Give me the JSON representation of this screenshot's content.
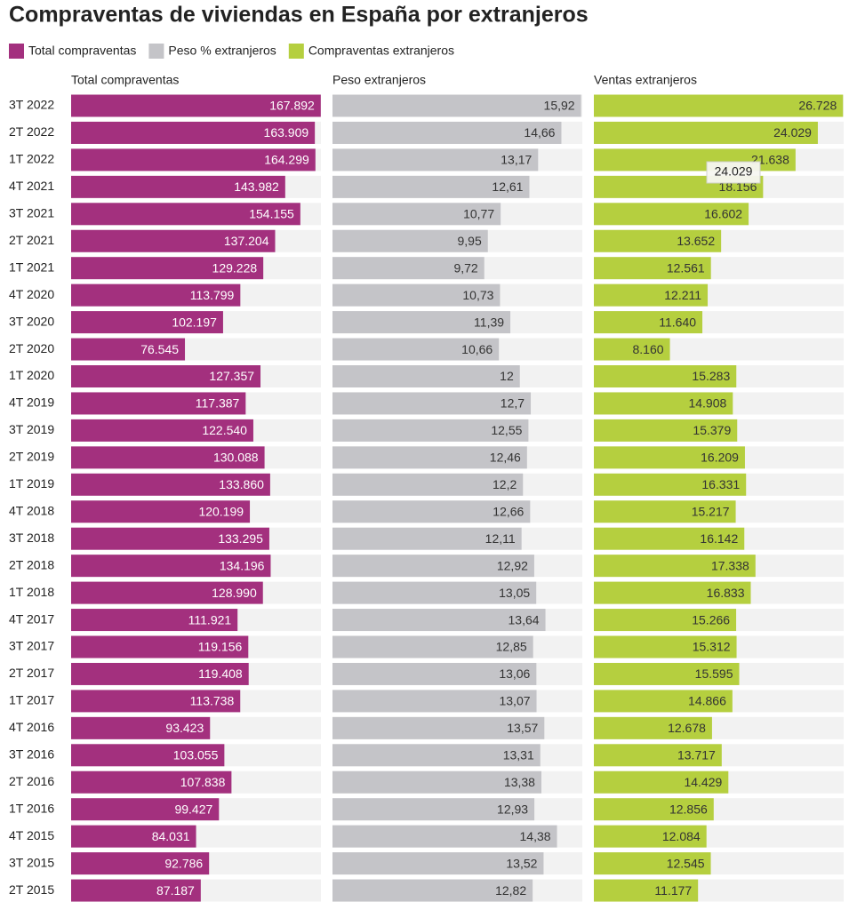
{
  "chart_data": {
    "type": "bar",
    "orientation": "horizontal",
    "title": "Compraventas de viviendas en España por extranjeros",
    "categories": [
      "3T 2022",
      "2T 2022",
      "1T 2022",
      "4T 2021",
      "3T 2021",
      "2T 2021",
      "1T 2021",
      "4T 2020",
      "3T 2020",
      "2T 2020",
      "1T 2020",
      "4T 2019",
      "3T 2019",
      "2T 2019",
      "1T 2019",
      "4T 2018",
      "3T 2018",
      "2T 2018",
      "1T 2018",
      "4T 2017",
      "3T 2017",
      "2T 2017",
      "1T 2017",
      "4T 2016",
      "3T 2016",
      "2T 2016",
      "1T 2016",
      "4T 2015",
      "3T 2015",
      "2T 2015"
    ],
    "series": [
      {
        "name": "Total compraventas",
        "panel_title": "Total compraventas",
        "color": "#a3307e",
        "label_color": "#ffffff",
        "xlim": [
          0,
          168000
        ],
        "values": [
          167892,
          163909,
          164299,
          143982,
          154155,
          137204,
          129228,
          113799,
          102197,
          76545,
          127357,
          117387,
          122540,
          130088,
          133860,
          120199,
          133295,
          134196,
          128990,
          111921,
          119156,
          119408,
          113738,
          93423,
          103055,
          107838,
          99427,
          84031,
          92786,
          87187
        ],
        "value_labels": [
          "167.892",
          "163.909",
          "164.299",
          "143.982",
          "154.155",
          "137.204",
          "129.228",
          "113.799",
          "102.197",
          "76.545",
          "127.357",
          "117.387",
          "122.540",
          "130.088",
          "133.860",
          "120.199",
          "133.295",
          "134.196",
          "128.990",
          "111.921",
          "119.156",
          "119.408",
          "113.738",
          "93.423",
          "103.055",
          "107.838",
          "99.427",
          "84.031",
          "92.786",
          "87.187"
        ]
      },
      {
        "name": "Peso % extranjeros",
        "panel_title": "Peso extranjeros",
        "color": "#c4c4c8",
        "label_color": "#333333",
        "xlim": [
          0,
          16
        ],
        "values": [
          15.92,
          14.66,
          13.17,
          12.61,
          10.77,
          9.95,
          9.72,
          10.73,
          11.39,
          10.66,
          12,
          12.7,
          12.55,
          12.46,
          12.2,
          12.66,
          12.11,
          12.92,
          13.05,
          13.64,
          12.85,
          13.06,
          13.07,
          13.57,
          13.31,
          13.38,
          12.93,
          14.38,
          13.52,
          12.82
        ],
        "value_labels": [
          "15,92",
          "14,66",
          "13,17",
          "12,61",
          "10,77",
          "9,95",
          "9,72",
          "10,73",
          "11,39",
          "10,66",
          "12",
          "12,7",
          "12,55",
          "12,46",
          "12,2",
          "12,66",
          "12,11",
          "12,92",
          "13,05",
          "13,64",
          "12,85",
          "13,06",
          "13,07",
          "13,57",
          "13,31",
          "13,38",
          "12,93",
          "14,38",
          "13,52",
          "12,82"
        ]
      },
      {
        "name": "Compraventas extranjeros",
        "panel_title": "Ventas extranjeros",
        "color": "#b5cf3f",
        "label_color": "#333333",
        "xlim": [
          0,
          26800
        ],
        "values": [
          26728,
          24029,
          21638,
          18156,
          16602,
          13652,
          12561,
          12211,
          11640,
          8160,
          15283,
          14908,
          15379,
          16209,
          16331,
          15217,
          16142,
          17338,
          16833,
          15266,
          15312,
          15595,
          14866,
          12678,
          13717,
          14429,
          12856,
          12084,
          12545,
          11177
        ],
        "value_labels": [
          "26.728",
          "24.029",
          "21.638",
          "18.156",
          "16.602",
          "13.652",
          "12.561",
          "12.211",
          "11.640",
          "8.160",
          "15.283",
          "14.908",
          "15.379",
          "16.209",
          "16.331",
          "15.217",
          "16.142",
          "17.338",
          "16.833",
          "15.266",
          "15.312",
          "15.595",
          "14.866",
          "12.678",
          "13.717",
          "14.429",
          "12.856",
          "12.084",
          "12.545",
          "11.177"
        ]
      }
    ]
  }
}
